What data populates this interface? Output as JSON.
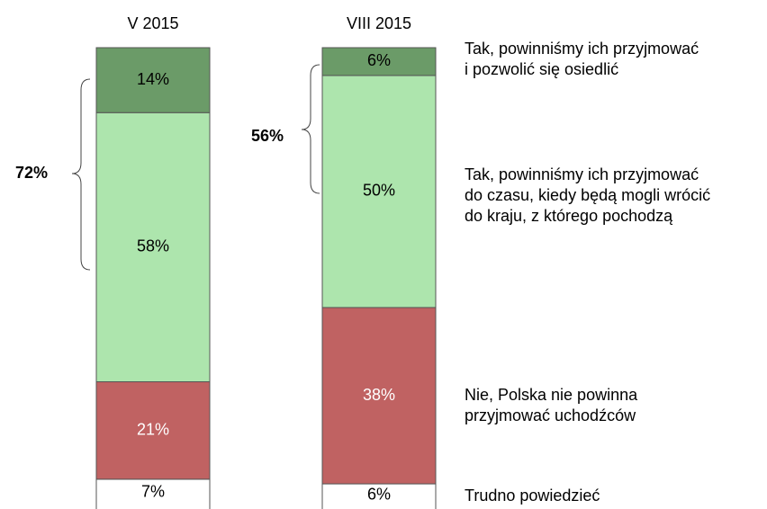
{
  "chart_data": {
    "type": "stacked_bar",
    "categories": [
      "V 2015",
      "VIII 2015"
    ],
    "series": [
      {
        "name": "Trudno powiedzieć",
        "color": "#ffffff",
        "label_color": "#000000",
        "values": [
          7,
          6
        ],
        "value_labels": [
          "7%",
          "6%"
        ]
      },
      {
        "name": "Nie, Polska nie powinna\nprzyjmować uchodźców",
        "color": "#c06262",
        "label_color": "#ffffff",
        "values": [
          21,
          38
        ],
        "value_labels": [
          "21%",
          "38%"
        ]
      },
      {
        "name": "Tak, powinniśmy ich przyjmować\ndo czasu, kiedy będą mogli wrócić\ndo kraju, z którego pochodzą",
        "color": "#ade5ad",
        "label_color": "#000000",
        "values": [
          58,
          50
        ],
        "value_labels": [
          "58%",
          "50%"
        ]
      },
      {
        "name": "Tak, powinniśmy ich przyjmować\ni pozwolić się osiedlić",
        "color": "#6b9b68",
        "label_color": "#000000",
        "values": [
          14,
          6
        ],
        "value_labels": [
          "14%",
          "6%"
        ]
      }
    ],
    "annotations": [
      "72%",
      "56%"
    ]
  }
}
